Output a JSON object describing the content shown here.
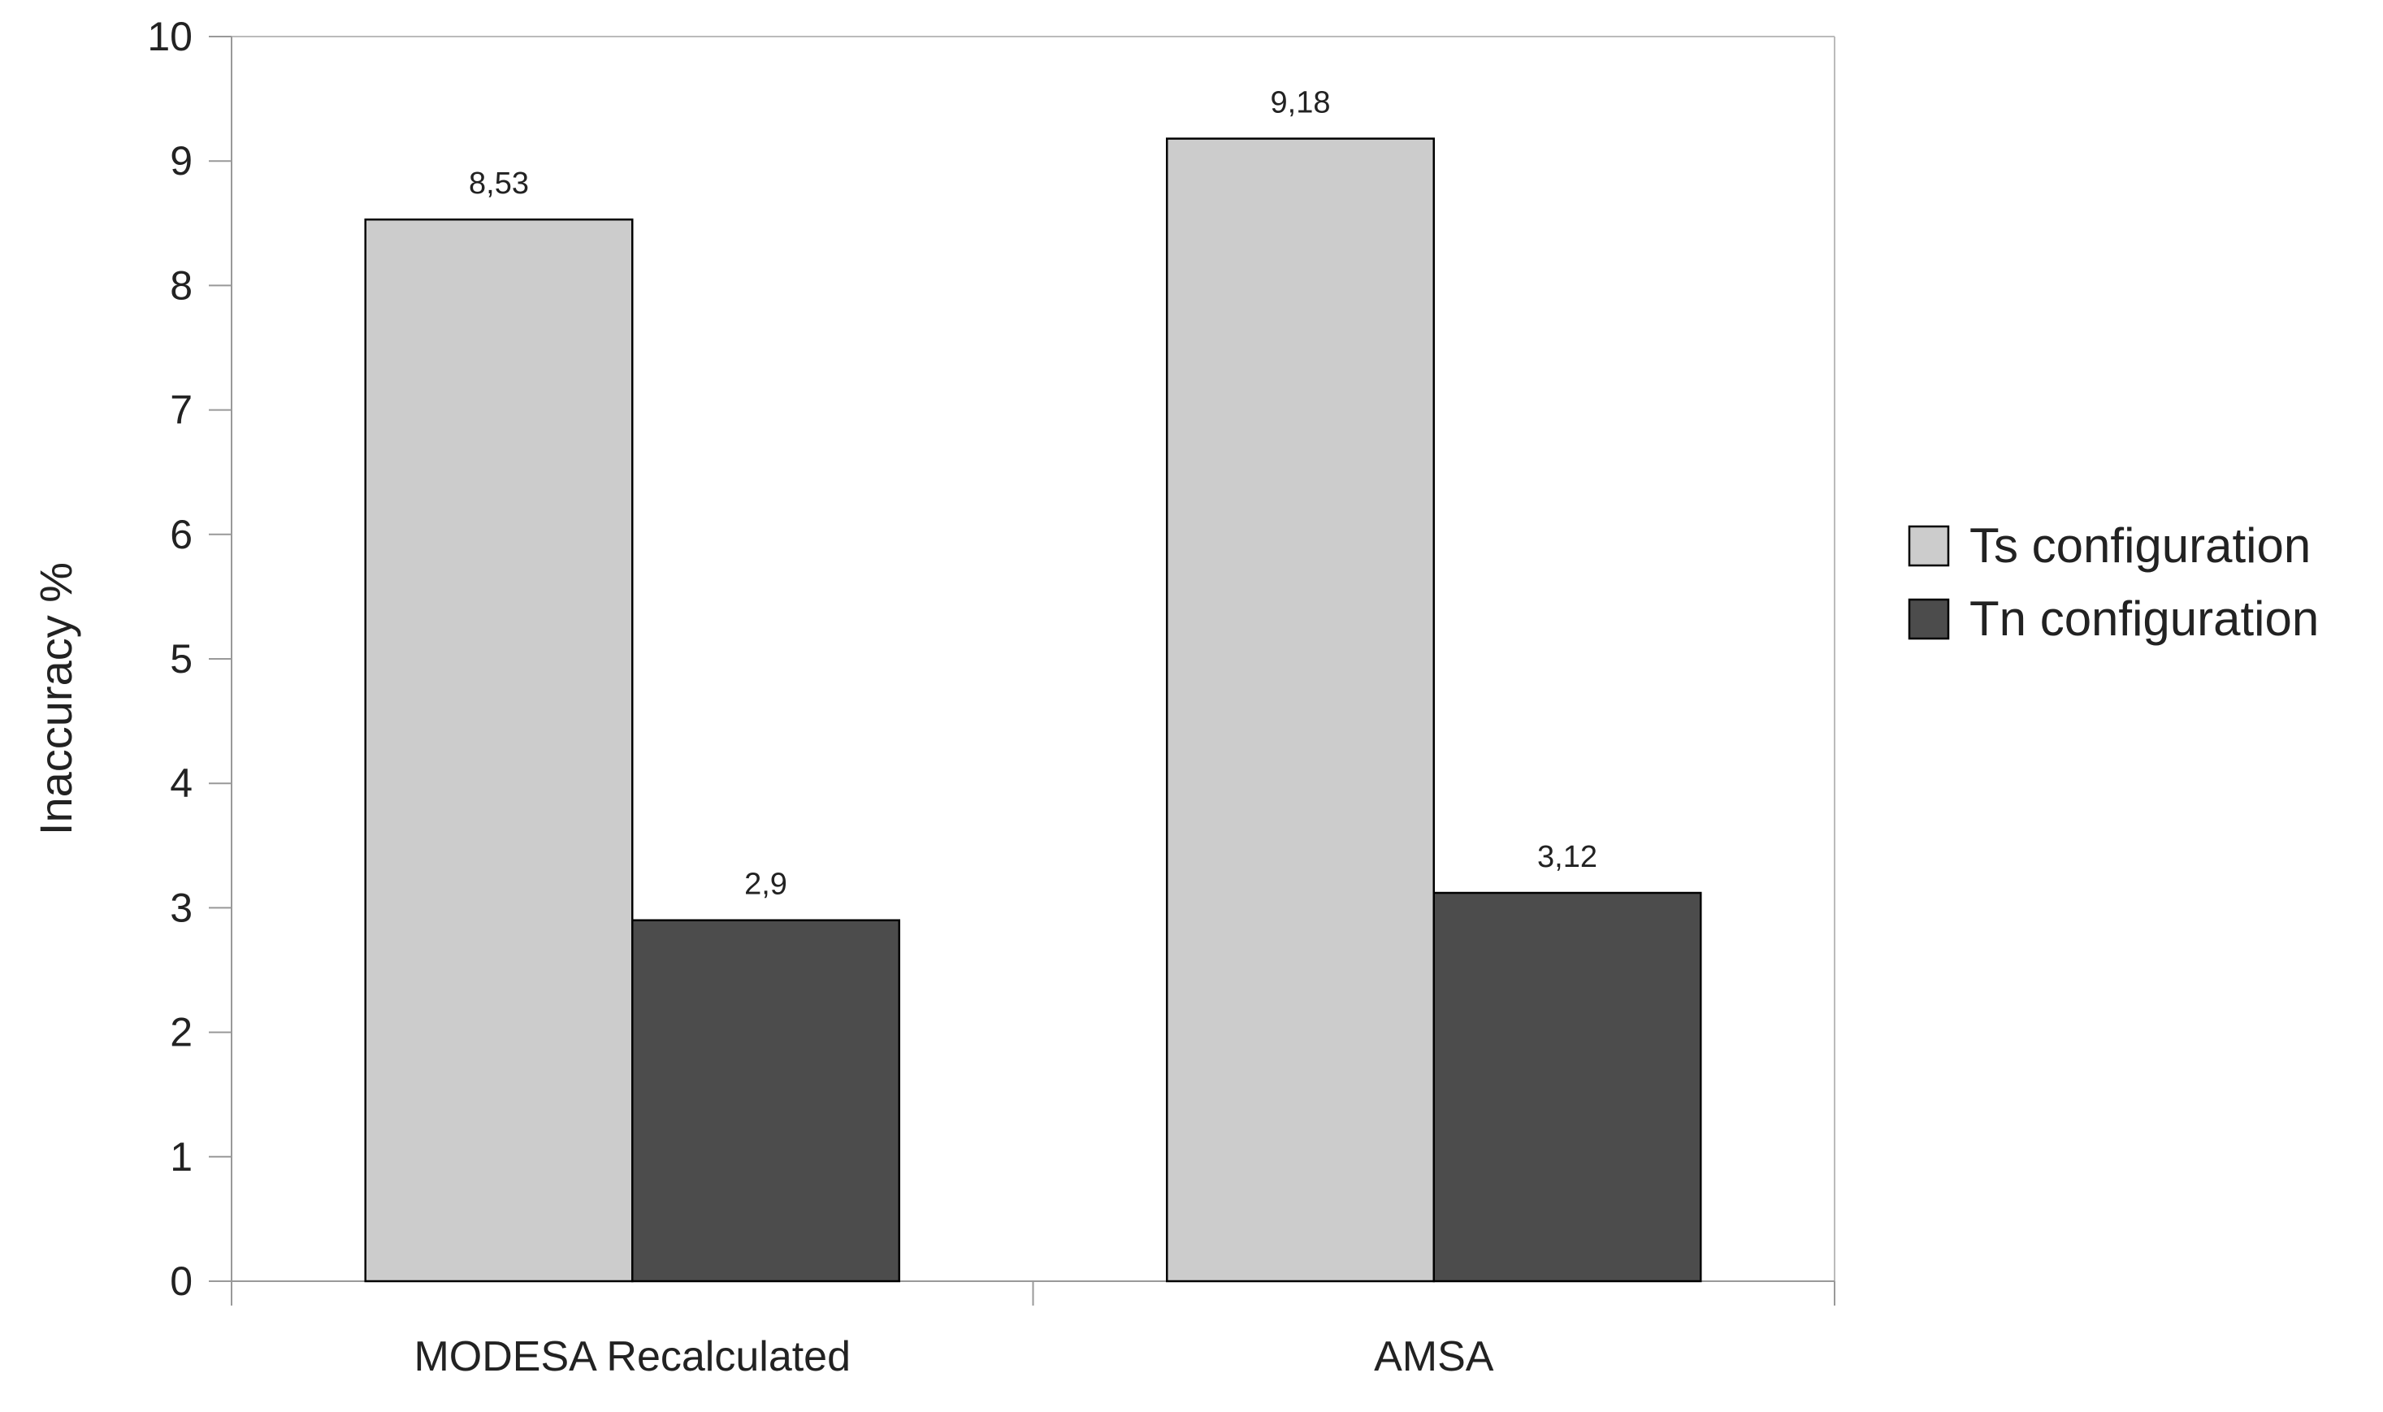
{
  "chart_data": {
    "type": "bar",
    "title": "",
    "xlabel": "",
    "ylabel": "Inaccuracy %",
    "categories": [
      "MODESA Recalculated",
      "AMSA"
    ],
    "series": [
      {
        "name": "Ts configuration",
        "values": [
          8.53,
          9.18
        ],
        "labels": [
          "8,53",
          "9,18"
        ],
        "color": "#cccccc"
      },
      {
        "name": "Tn configuration",
        "values": [
          2.9,
          3.12
        ],
        "labels": [
          "2,9",
          "3,12"
        ],
        "color": "#4c4c4c"
      }
    ],
    "ylim": [
      0,
      10
    ],
    "yticks": [
      0,
      1,
      2,
      3,
      4,
      5,
      6,
      7,
      8,
      9,
      10
    ],
    "grid": false,
    "legend_position": "right"
  }
}
